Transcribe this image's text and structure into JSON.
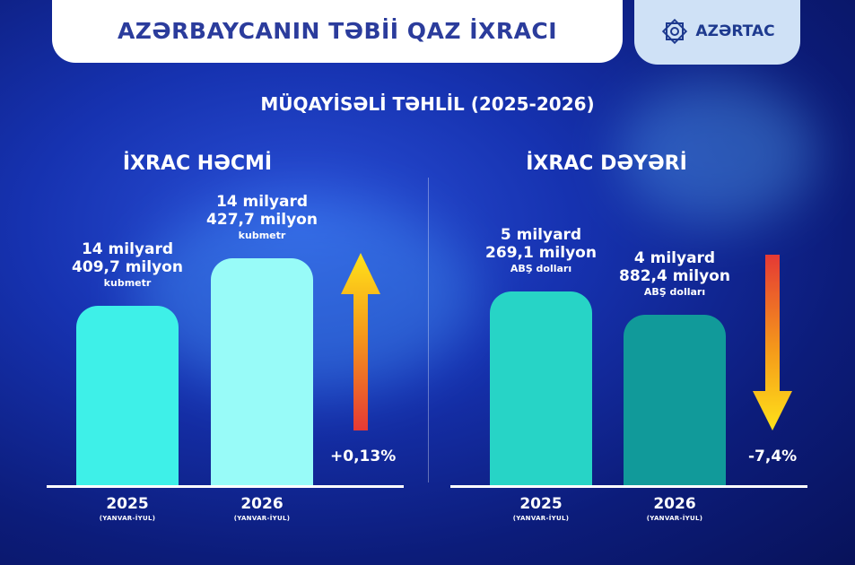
{
  "header": {
    "title": "AZƏRBAYCANIN TƏBİİ QAZ İXRACI",
    "logo_text": "AZƏRTAC"
  },
  "subtitle": "MÜQAYİSƏLİ TƏHLİL (2025-2026)",
  "colors": {
    "accent": "#2b3c9c",
    "up_arrow": "#f5c518",
    "down_arrow": "#e53935"
  },
  "chart_data": [
    {
      "type": "bar",
      "title": "İXRAC HƏCMİ",
      "categories": [
        "2025",
        "2026"
      ],
      "periods": [
        "(YANVAR-İYUL)",
        "(YANVAR-İYUL)"
      ],
      "values": [
        14409.7,
        14427.7
      ],
      "unit": "milyon kubmetr",
      "labels": [
        {
          "l1": "14 milyard",
          "l2": "409,7 milyon",
          "l3": "kubmetr"
        },
        {
          "l1": "14 milyard",
          "l2": "427,7 milyon",
          "l3": "kubmetr"
        }
      ],
      "bar_colors": [
        "#3ef0e8",
        "#98fbf8"
      ],
      "change": "+0,13%",
      "direction": "up"
    },
    {
      "type": "bar",
      "title": "İXRAC DƏYƏRİ",
      "categories": [
        "2025",
        "2026"
      ],
      "periods": [
        "(YANVAR-İYUL)",
        "(YANVAR-İYUL)"
      ],
      "values": [
        5269.1,
        4882.4
      ],
      "unit": "milyon ABŞ dolları",
      "labels": [
        {
          "l1": "5 milyard",
          "l2": "269,1 milyon",
          "l3": "ABŞ dolları"
        },
        {
          "l1": "4 milyard",
          "l2": "882,4 milyon",
          "l3": "ABŞ dolları"
        }
      ],
      "bar_colors": [
        "#27d4c6",
        "#119a9a"
      ],
      "change": "-7,4%",
      "direction": "down"
    }
  ]
}
